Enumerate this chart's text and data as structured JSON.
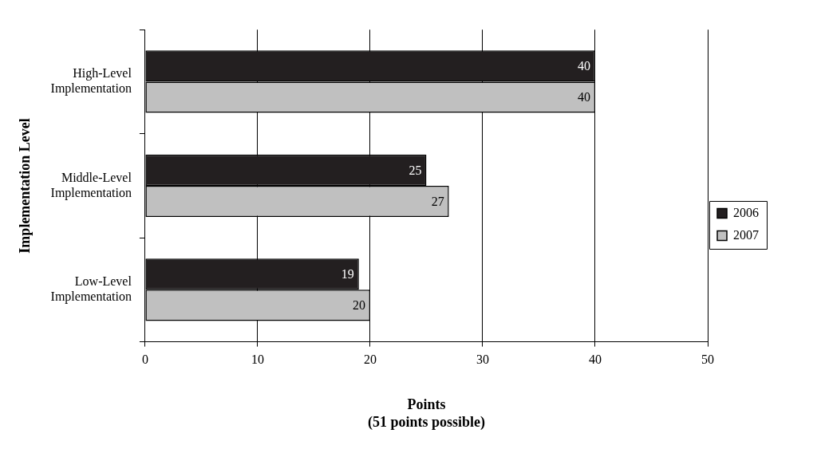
{
  "chart_data": {
    "type": "bar",
    "orientation": "horizontal",
    "categories": [
      "High-Level Implementation",
      "Middle-Level Implementation",
      "Low-Level Implementation"
    ],
    "series": [
      {
        "name": "2006",
        "color": "#231f20",
        "values": [
          40,
          25,
          19
        ]
      },
      {
        "name": "2007",
        "color": "#c0c0c0",
        "values": [
          40,
          27,
          20
        ]
      }
    ],
    "xlabel": "Points\n(51 points possible)",
    "ylabel": "Implementation Level",
    "xlim": [
      0,
      50
    ],
    "xticks": [
      0,
      10,
      20,
      30,
      40,
      50
    ],
    "grid": "x",
    "legend": "right",
    "data_labels": true
  }
}
